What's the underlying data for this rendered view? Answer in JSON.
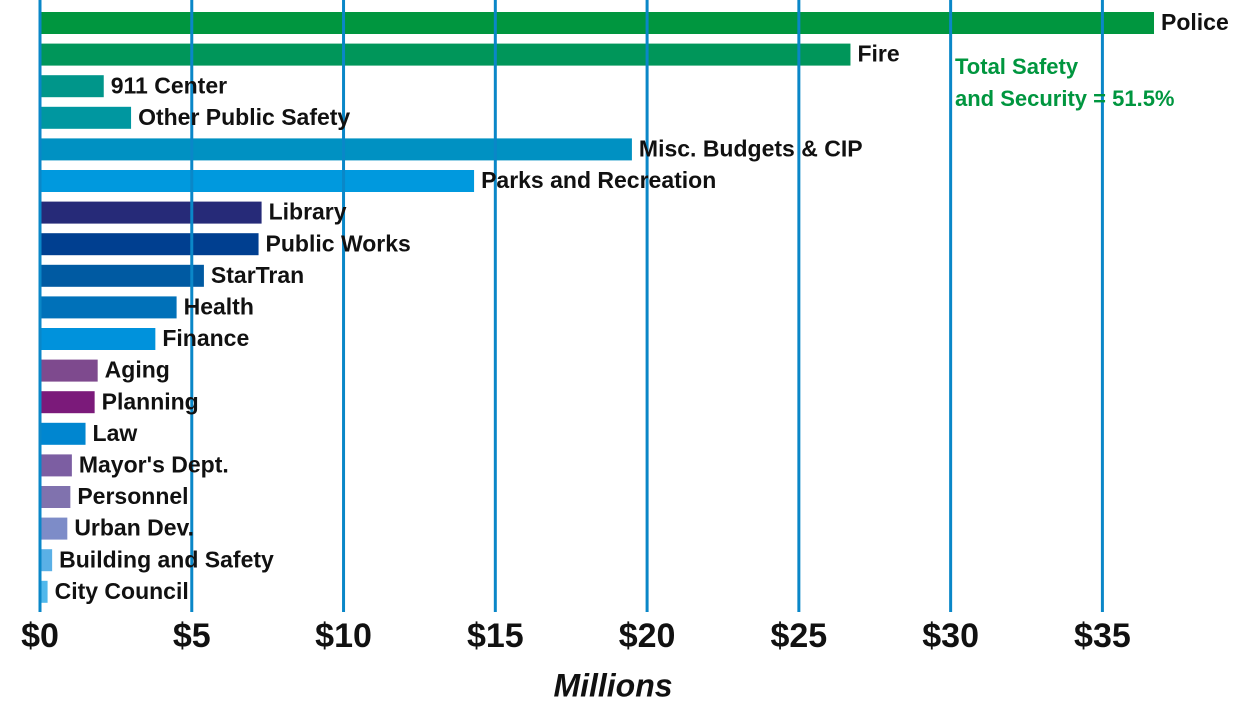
{
  "chart_data": {
    "type": "barh",
    "categories": [
      "Police",
      "Fire",
      "911 Center",
      "Other Public Safety",
      "Misc. Budgets & CIP",
      "Parks and Recreation",
      "Library",
      "Public Works",
      "StarTran",
      "Health",
      "Finance",
      "Aging",
      "Planning",
      "Law",
      "Mayor's Dept.",
      "Personnel",
      "Urban Dev.",
      "Building and Safety",
      "City Council"
    ],
    "values": [
      36.7,
      26.7,
      2.1,
      3.0,
      19.5,
      14.3,
      7.3,
      7.2,
      5.4,
      4.5,
      3.8,
      1.9,
      1.8,
      1.5,
      1.05,
      1.0,
      0.9,
      0.4,
      0.25
    ],
    "colors": [
      "#00963f",
      "#00965a",
      "#00968a",
      "#0097a0",
      "#0091c2",
      "#0099de",
      "#262a78",
      "#003f90",
      "#005aa2",
      "#0071b9",
      "#0092dc",
      "#7e4a8e",
      "#7b1a7a",
      "#0086d0",
      "#7c5ea2",
      "#8072ae",
      "#7d8cc8",
      "#5ab0e6",
      "#50b8ec"
    ],
    "xlim": [
      0,
      39.5
    ],
    "xticks": [
      {
        "value": 0,
        "label": "$0"
      },
      {
        "value": 5,
        "label": "$5"
      },
      {
        "value": 10,
        "label": "$10"
      },
      {
        "value": 15,
        "label": "$15"
      },
      {
        "value": 20,
        "label": "$20"
      },
      {
        "value": 25,
        "label": "$25"
      },
      {
        "value": 30,
        "label": "$30"
      },
      {
        "value": 35,
        "label": "$35"
      }
    ],
    "xlabel": "Millions",
    "grid": true,
    "grid_color": "#0a87c8",
    "annotation": [
      "Total Safety",
      "and Security = 51.5%"
    ],
    "annotation_color": "#00963f"
  }
}
